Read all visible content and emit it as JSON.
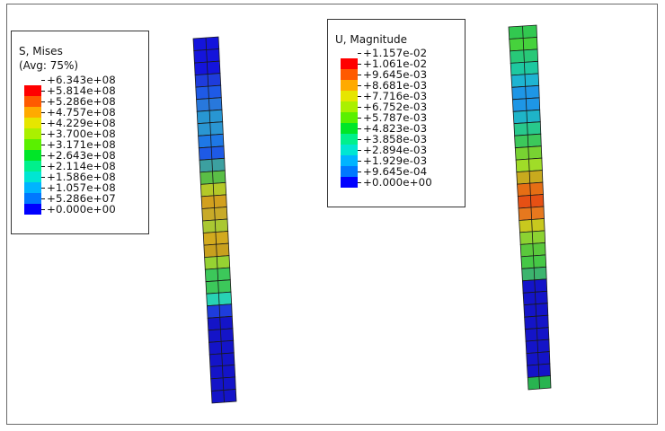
{
  "legends": {
    "stress": {
      "title_line1": "S, Mises",
      "title_line2": "(Avg: 75%)",
      "labels": [
        "+6.343e+08",
        "+5.814e+08",
        "+5.286e+08",
        "+4.757e+08",
        "+4.229e+08",
        "+3.700e+08",
        "+3.171e+08",
        "+2.643e+08",
        "+2.114e+08",
        "+1.586e+08",
        "+1.057e+08",
        "+5.286e+07",
        "+0.000e+00"
      ],
      "colors": [
        "#ff0000",
        "#ff5a00",
        "#ffaa00",
        "#e6e600",
        "#aaf000",
        "#5af000",
        "#00e628",
        "#00f08c",
        "#00e6d2",
        "#00b4ff",
        "#0078ff",
        "#0000ff"
      ]
    },
    "displacement": {
      "title_line1": "U, Magnitude",
      "labels": [
        "+1.157e-02",
        "+1.061e-02",
        "+9.645e-03",
        "+8.681e-03",
        "+7.716e-03",
        "+6.752e-03",
        "+5.787e-03",
        "+4.823e-03",
        "+3.858e-03",
        "+2.894e-03",
        "+1.929e-03",
        "+9.645e-04",
        "+0.000e+00"
      ],
      "colors": [
        "#ff0000",
        "#ff5a00",
        "#ffaa00",
        "#e6e600",
        "#aaf000",
        "#5af000",
        "#00e628",
        "#00f08c",
        "#00e6d2",
        "#00b4ff",
        "#0078ff",
        "#0000ff"
      ]
    }
  },
  "bars": {
    "stress": {
      "colors": [
        "#1414dc",
        "#1414dc",
        "#1414dc",
        "#1e3cdc",
        "#1e5ae6",
        "#2878dc",
        "#2896d2",
        "#2a96d2",
        "#1e78e6",
        "#1e5ae6",
        "#3ca0a0",
        "#5abe46",
        "#b4c828",
        "#d2a01e",
        "#c8aa28",
        "#aac832",
        "#d2aa1e",
        "#c8a01e",
        "#96d232",
        "#3cc85a",
        "#3cc85a",
        "#28d2b4",
        "#1e3cdc",
        "#1414c8",
        "#1414c8",
        "#1414c8",
        "#1414c8",
        "#1414c8",
        "#1414c8",
        "#1414c8"
      ]
    },
    "displacement": {
      "colors": [
        "#32c850",
        "#46d23c",
        "#28c878",
        "#1ec8a0",
        "#1eb4d2",
        "#1e96e6",
        "#1e96e6",
        "#1eb4c8",
        "#28c88c",
        "#3cc85a",
        "#78d232",
        "#a0dc28",
        "#c8aa1e",
        "#e66e14",
        "#e65014",
        "#e6781e",
        "#c8c81e",
        "#8cd232",
        "#5ac83c",
        "#46c846",
        "#3cb46e",
        "#1414c8",
        "#1414c8",
        "#1414c8",
        "#1414c8",
        "#1414c8",
        "#1414c8",
        "#1414c8",
        "#1414c8",
        "#28b450"
      ]
    }
  }
}
